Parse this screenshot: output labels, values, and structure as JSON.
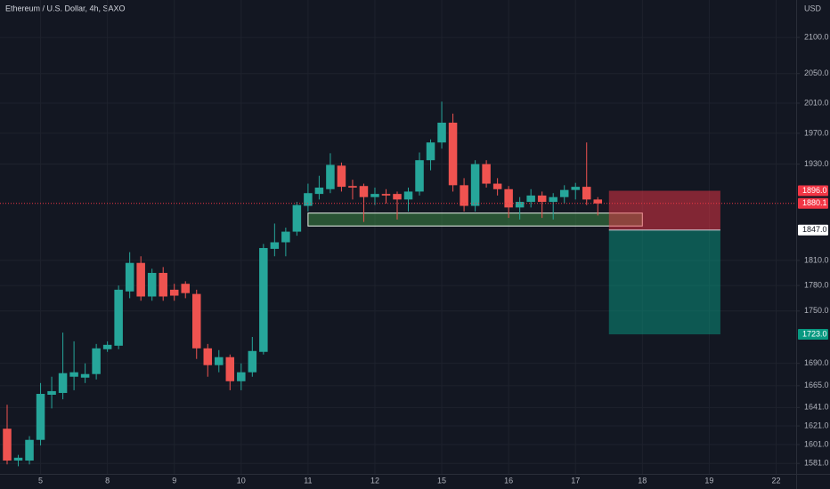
{
  "chart_data": {
    "type": "candlestick",
    "title": "Ethereum / U.S. Dollar, 4h, SAXO",
    "y_unit": "USD",
    "log": true,
    "grid": true,
    "up_color": "#26a69a",
    "down_color": "#ef5350",
    "ylim": [
      1570,
      2153
    ],
    "yticks": [
      {
        "value": 2100,
        "label": "2100.0"
      },
      {
        "value": 2050,
        "label": "2050.0"
      },
      {
        "value": 2010,
        "label": "2010.0"
      },
      {
        "value": 1970,
        "label": "1970.0"
      },
      {
        "value": 1930,
        "label": "1930.0"
      },
      {
        "value": 1810,
        "label": "1810.0"
      },
      {
        "value": 1780,
        "label": "1780.0"
      },
      {
        "value": 1750,
        "label": "1750.0"
      },
      {
        "value": 1690,
        "label": "1690.0"
      },
      {
        "value": 1665,
        "label": "1665.0"
      },
      {
        "value": 1641,
        "label": "1641.0"
      },
      {
        "value": 1621,
        "label": "1621.0"
      },
      {
        "value": 1601,
        "label": "1601.0"
      },
      {
        "value": 1581,
        "label": "1581.0"
      }
    ],
    "xlim": [
      -0.64,
      70.8
    ],
    "xticks": [
      {
        "value": 3,
        "label": "5"
      },
      {
        "value": 9,
        "label": "8"
      },
      {
        "value": 15,
        "label": "9"
      },
      {
        "value": 21,
        "label": "10"
      },
      {
        "value": 27,
        "label": "11"
      },
      {
        "value": 33,
        "label": "12"
      },
      {
        "value": 39,
        "label": "15"
      },
      {
        "value": 45,
        "label": "16"
      },
      {
        "value": 51,
        "label": "17"
      },
      {
        "value": 57,
        "label": "18"
      },
      {
        "value": 63,
        "label": "19"
      },
      {
        "value": 69,
        "label": "22"
      }
    ],
    "open": [
      1618,
      1584,
      1584,
      1606,
      1655,
      1657,
      1675,
      1674,
      1678,
      1706,
      1710,
      1773,
      1807,
      1767,
      1795,
      1775,
      1782,
      1770,
      1707,
      1688,
      1697,
      1670,
      1680,
      1703,
      1824,
      1832,
      1845,
      1877,
      1892,
      1898,
      1928,
      1902,
      1902,
      1888,
      1892,
      1892,
      1885,
      1895,
      1935,
      1958,
      1984,
      1903,
      1877,
      1930,
      1905,
      1898,
      1875,
      1882,
      1890,
      1882,
      1888,
      1897,
      1901,
      1885
    ],
    "high": [
      1644,
      1590,
      1610,
      1668,
      1675,
      1725,
      1715,
      1690,
      1712,
      1715,
      1780,
      1820,
      1815,
      1800,
      1802,
      1782,
      1785,
      1775,
      1712,
      1705,
      1700,
      1690,
      1720,
      1830,
      1855,
      1850,
      1882,
      1905,
      1915,
      1944,
      1932,
      1910,
      1905,
      1900,
      1898,
      1895,
      1900,
      1945,
      1962,
      2012,
      1996,
      1912,
      1935,
      1935,
      1912,
      1902,
      1888,
      1898,
      1895,
      1893,
      1903,
      1906,
      1958,
      1888
    ],
    "low": [
      1580,
      1578,
      1580,
      1600,
      1640,
      1650,
      1660,
      1668,
      1672,
      1703,
      1706,
      1765,
      1762,
      1762,
      1762,
      1762,
      1765,
      1695,
      1675,
      1680,
      1660,
      1660,
      1675,
      1700,
      1815,
      1815,
      1840,
      1870,
      1885,
      1893,
      1895,
      1885,
      1857,
      1878,
      1880,
      1860,
      1870,
      1890,
      1922,
      1950,
      1895,
      1870,
      1870,
      1900,
      1890,
      1862,
      1860,
      1875,
      1862,
      1860,
      1880,
      1885,
      1878,
      1865
    ],
    "close": [
      1584,
      1587,
      1606,
      1656,
      1659,
      1679,
      1680,
      1678,
      1707,
      1711,
      1775,
      1807,
      1767,
      1795,
      1767,
      1768,
      1771,
      1707,
      1688,
      1697,
      1670,
      1680,
      1704,
      1825,
      1832,
      1845,
      1878,
      1893,
      1900,
      1929,
      1901,
      1900,
      1888,
      1892,
      1890,
      1885,
      1895,
      1935,
      1958,
      1984,
      1903,
      1877,
      1930,
      1905,
      1898,
      1875,
      1882,
      1890,
      1882,
      1888,
      1897,
      1901,
      1885,
      1880
    ],
    "last_price": 1880.1,
    "last_price_color": "#f23645",
    "zone": {
      "x": [
        27,
        57
      ],
      "y": [
        1852,
        1868
      ],
      "color": "#4caf50"
    },
    "position": {
      "x": [
        54,
        64
      ],
      "stop": {
        "value": 1896,
        "label": "1896.0"
      },
      "entry": {
        "value": 1847,
        "label": "1847.0"
      },
      "target": {
        "value": 1723,
        "label": "1723.0"
      },
      "stop_color": "#f23645",
      "target_color": "#089981"
    }
  }
}
